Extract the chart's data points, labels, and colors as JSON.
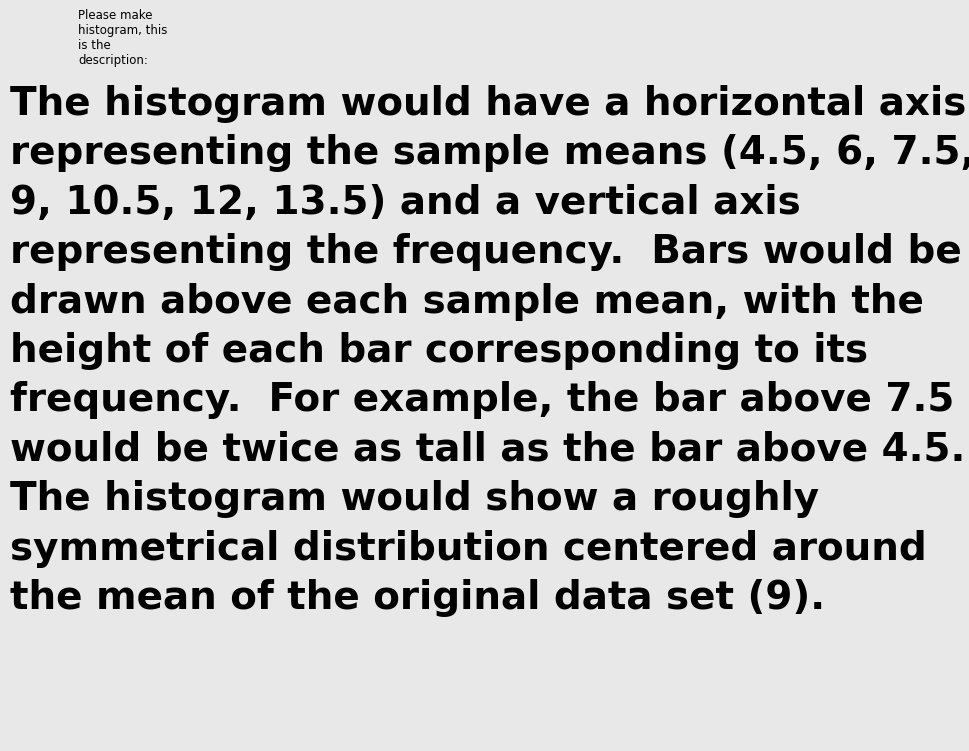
{
  "small_text": "Please make\nhistogram, this\nis the\ndescription:",
  "main_lines": [
    "The histogram would have a horizontal axis",
    "representing the sample means (4.5, 6, 7.5,",
    "9, 10.5, 12, 13.5) and a vertical axis",
    "representing the frequency.  Bars would be",
    "drawn above each sample mean, with the",
    "height of each bar corresponding to its",
    "frequency.  For example, the bar above 7.5",
    "would be twice as tall as the bar above 4.5.",
    "The histogram would show a roughly",
    "symmetrical distribution centered around",
    "the mean of the original data set (9)."
  ],
  "background_color": "#e8e8e8",
  "small_text_color": "#000000",
  "main_text_color": "#000000",
  "small_text_fontsize": 8.5,
  "main_text_fontsize": 28,
  "figwidth": 9.69,
  "figheight": 7.51
}
